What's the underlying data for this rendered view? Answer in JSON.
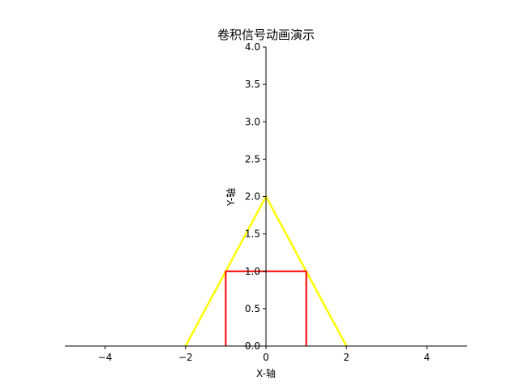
{
  "chart_data": {
    "type": "line",
    "title": "卷积信号动画演示",
    "xlabel": "X-轴",
    "ylabel": "Y-轴",
    "xlim": [
      -5,
      5
    ],
    "ylim": [
      0,
      4
    ],
    "xticks": [
      -4,
      -2,
      0,
      2,
      4
    ],
    "yticks": [
      0.0,
      0.5,
      1.0,
      1.5,
      2.0,
      2.5,
      3.0,
      3.5,
      4.0
    ],
    "grid": false,
    "spines": "centered",
    "series": [
      {
        "color": "#ffff00",
        "x": [
          -2,
          0,
          2
        ],
        "y": [
          0,
          2,
          0
        ]
      },
      {
        "color": "#ff0000",
        "x": [
          -1,
          -1,
          1,
          1
        ],
        "y": [
          0,
          1,
          1,
          0
        ]
      }
    ]
  }
}
